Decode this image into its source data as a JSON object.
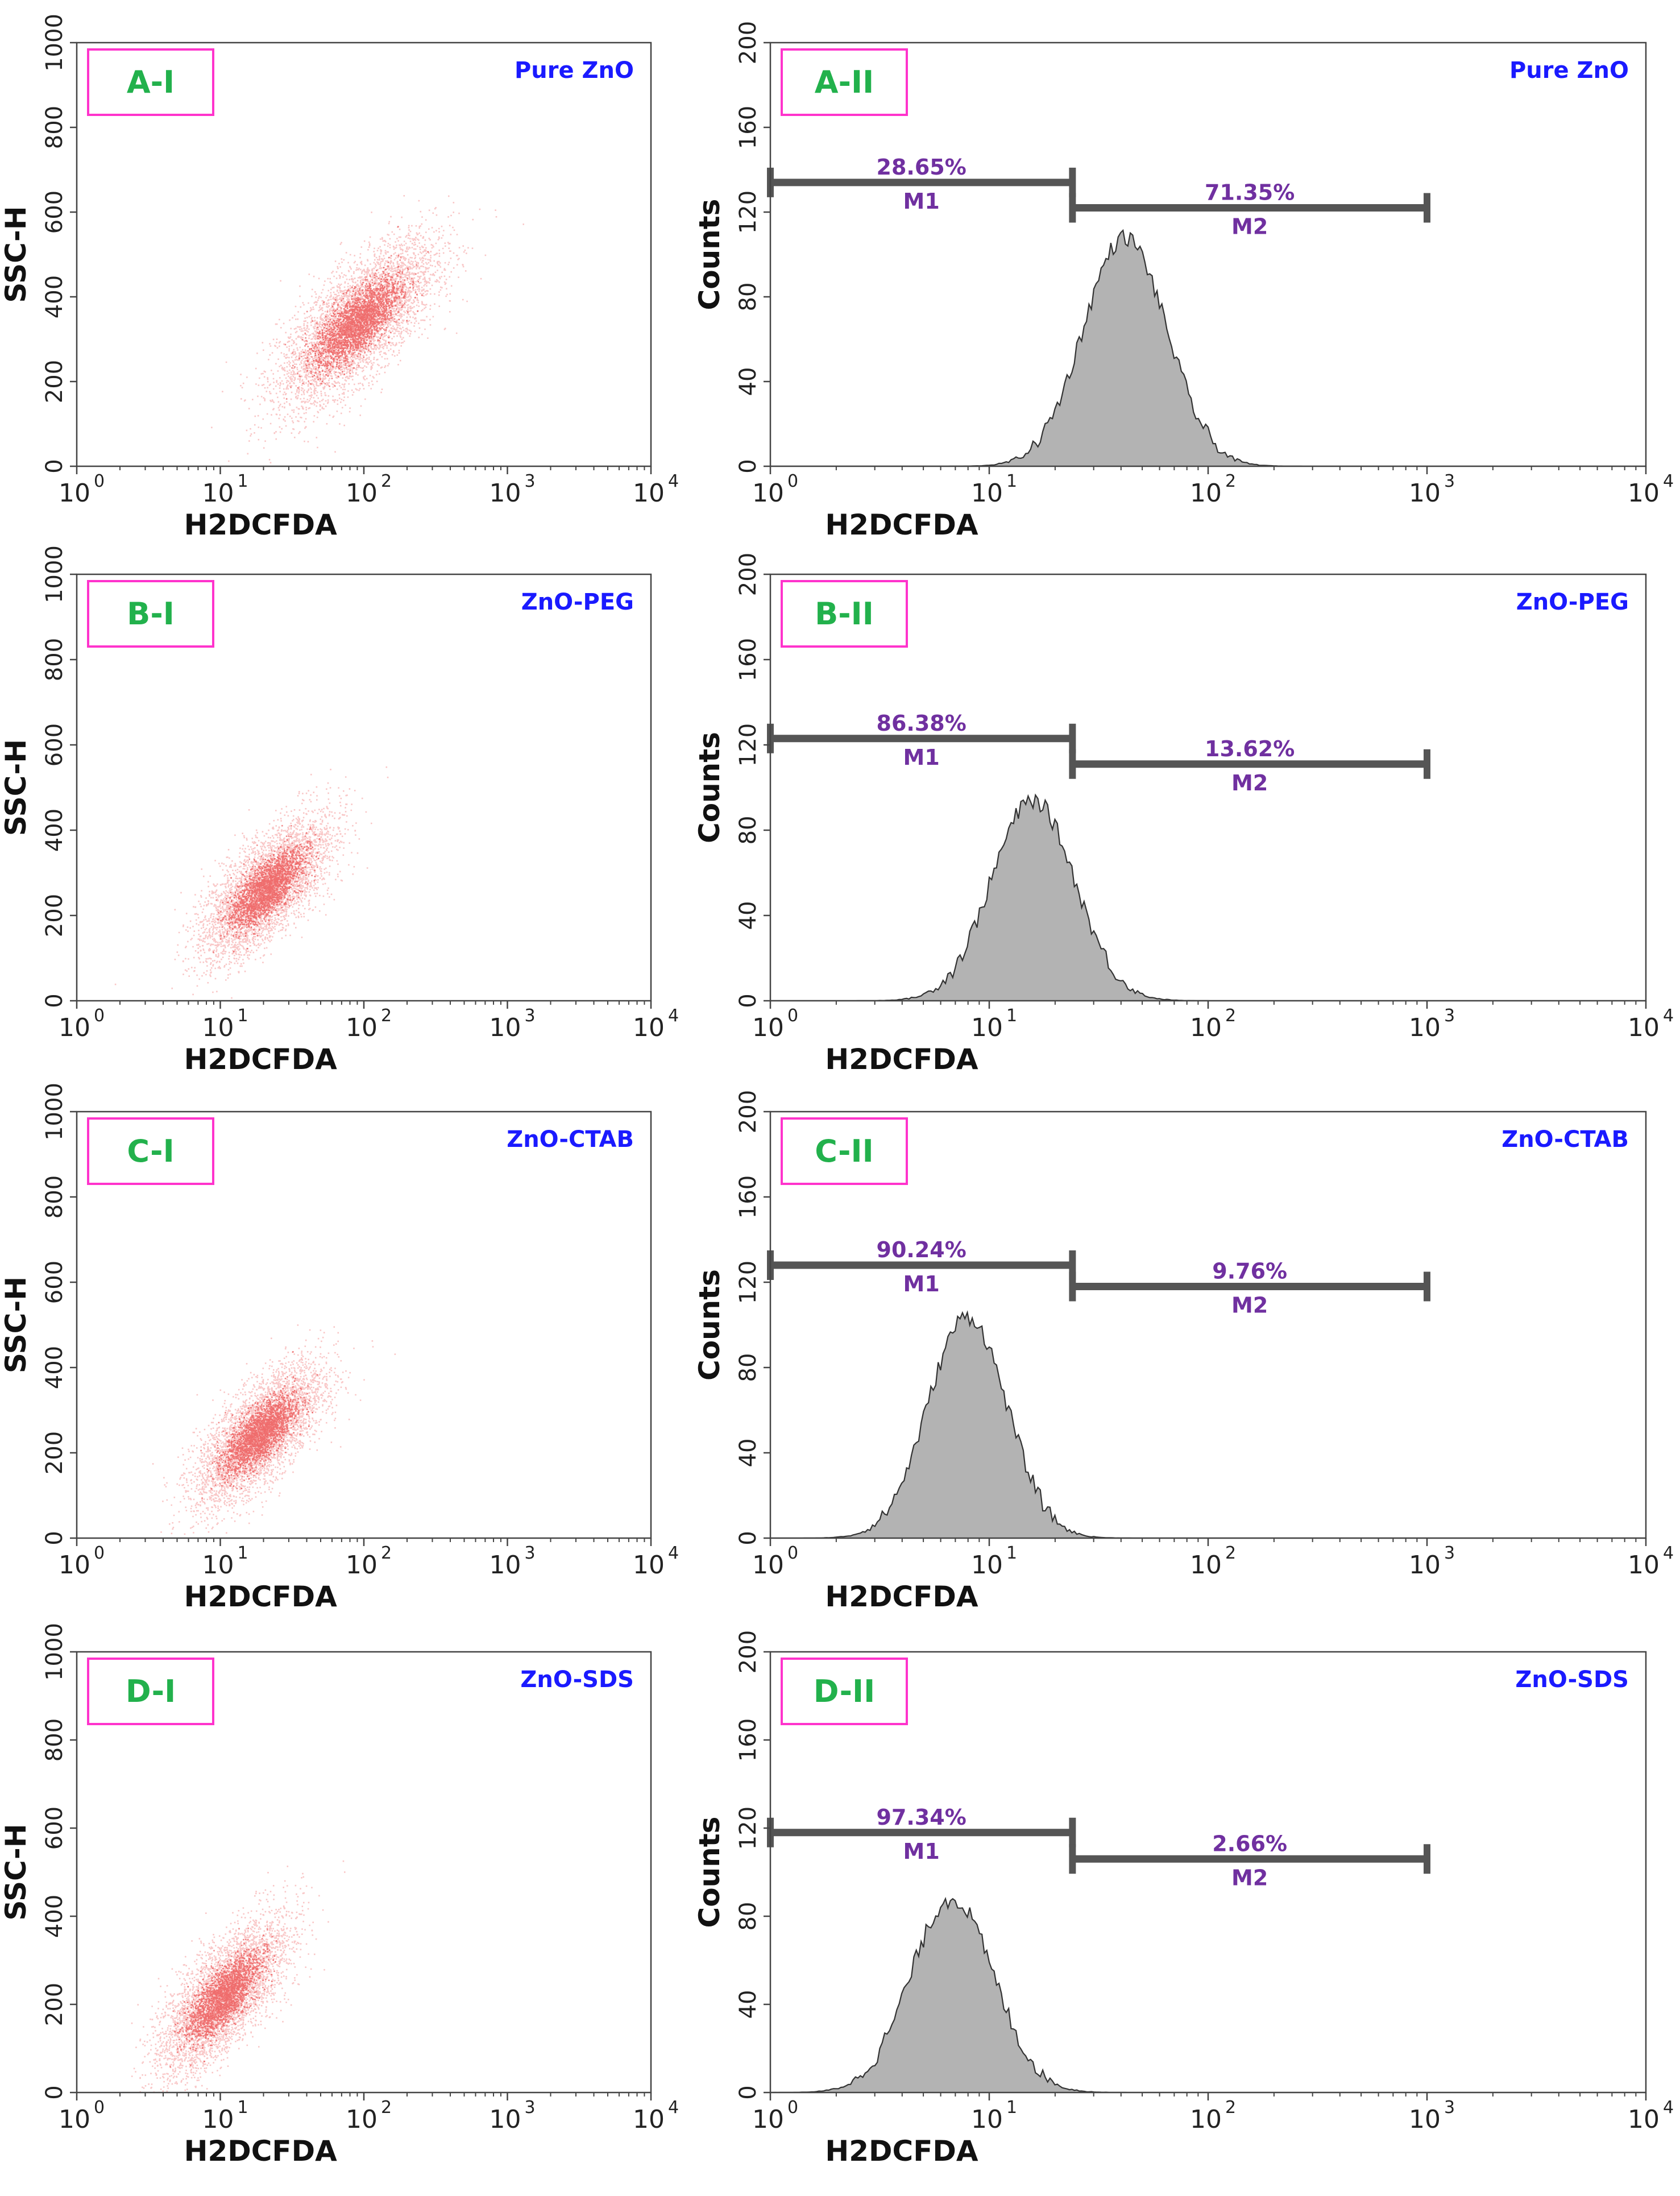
{
  "figure": {
    "sample_labels": [
      "Pure ZnO",
      "ZnO-PEG",
      "ZnO-CTAB",
      "ZnO-SDS"
    ],
    "colors": {
      "panel_label_text": "#22b14c",
      "panel_label_border": "#ff33cc",
      "sample_label": "#1a1aff",
      "marker_text": "#7030a0",
      "marker_bar": "#555555",
      "scatter_dot": "#e30000",
      "histogram_fill": "#b3b3b3",
      "histogram_edge": "#333333",
      "axis": "#444444"
    }
  },
  "chart_data": [
    {
      "id": "A-I",
      "type": "scatter",
      "panel_label": "A-I",
      "sample": "Pure ZnO",
      "xlabel": "H2DCFDA",
      "ylabel": "SSC-H",
      "xscale": "log",
      "xlim": [
        1,
        10000
      ],
      "xticks": [
        "10",
        "10",
        "10",
        "10",
        "10"
      ],
      "xtick_exponents": [
        "0",
        "1",
        "2",
        "3",
        "4"
      ],
      "ylim": [
        0,
        1000
      ],
      "yticks": [
        "0",
        "200",
        "400",
        "600",
        "800",
        "1000"
      ],
      "population": {
        "center_log_x": 1.95,
        "center_y": 340,
        "spread_log_x": 0.27,
        "spread_y": 95,
        "correlation": 0.72,
        "n": 5000
      }
    },
    {
      "id": "A-II",
      "type": "area",
      "panel_label": "A-II",
      "sample": "Pure ZnO",
      "xlabel": "H2DCFDA",
      "ylabel": "Counts",
      "xscale": "log",
      "xlim": [
        1,
        10000
      ],
      "xticks": [
        "10",
        "10",
        "10",
        "10",
        "10"
      ],
      "xtick_exponents": [
        "0",
        "1",
        "2",
        "3",
        "4"
      ],
      "ylim": [
        0,
        200
      ],
      "yticks": [
        "0",
        "40",
        "80",
        "120",
        "160",
        "200"
      ],
      "histogram": {
        "peak_log_x": 1.62,
        "peak_count": 108,
        "spread_log_x": 0.19
      },
      "markers": [
        {
          "name": "M1",
          "percent": "28.65%",
          "from": 1,
          "to": 24,
          "y": 134
        },
        {
          "name": "M2",
          "percent": "71.35%",
          "from": 24,
          "to": 1000,
          "y": 122
        }
      ]
    },
    {
      "id": "B-I",
      "type": "scatter",
      "panel_label": "B-I",
      "sample": "ZnO-PEG",
      "xlabel": "H2DCFDA",
      "ylabel": "SSC-H",
      "xscale": "log",
      "xlim": [
        1,
        10000
      ],
      "xticks": [
        "10",
        "10",
        "10",
        "10",
        "10"
      ],
      "xtick_exponents": [
        "0",
        "1",
        "2",
        "3",
        "4"
      ],
      "ylim": [
        0,
        1000
      ],
      "yticks": [
        "0",
        "200",
        "400",
        "600",
        "800",
        "1000"
      ],
      "population": {
        "center_log_x": 1.32,
        "center_y": 265,
        "spread_log_x": 0.22,
        "spread_y": 80,
        "correlation": 0.7,
        "n": 4500
      }
    },
    {
      "id": "B-II",
      "type": "area",
      "panel_label": "B-II",
      "sample": "ZnO-PEG",
      "xlabel": "H2DCFDA",
      "ylabel": "Counts",
      "xscale": "log",
      "xlim": [
        1,
        10000
      ],
      "xticks": [
        "10",
        "10",
        "10",
        "10",
        "10"
      ],
      "xtick_exponents": [
        "0",
        "1",
        "2",
        "3",
        "4"
      ],
      "ylim": [
        0,
        200
      ],
      "yticks": [
        "0",
        "40",
        "80",
        "120",
        "160",
        "200"
      ],
      "histogram": {
        "peak_log_x": 1.2,
        "peak_count": 94,
        "spread_log_x": 0.19
      },
      "markers": [
        {
          "name": "M1",
          "percent": "86.38%",
          "from": 1,
          "to": 24,
          "y": 123
        },
        {
          "name": "M2",
          "percent": "13.62%",
          "from": 24,
          "to": 1000,
          "y": 111
        }
      ]
    },
    {
      "id": "C-I",
      "type": "scatter",
      "panel_label": "C-I",
      "sample": "ZnO-CTAB",
      "xlabel": "H2DCFDA",
      "ylabel": "SSC-H",
      "xscale": "log",
      "xlim": [
        1,
        10000
      ],
      "xticks": [
        "10",
        "10",
        "10",
        "10",
        "10"
      ],
      "xtick_exponents": [
        "0",
        "1",
        "2",
        "3",
        "4"
      ],
      "ylim": [
        0,
        1000
      ],
      "yticks": [
        "0",
        "200",
        "400",
        "600",
        "800",
        "1000"
      ],
      "population": {
        "center_log_x": 1.27,
        "center_y": 245,
        "spread_log_x": 0.22,
        "spread_y": 80,
        "correlation": 0.7,
        "n": 4500
      }
    },
    {
      "id": "C-II",
      "type": "area",
      "panel_label": "C-II",
      "sample": "ZnO-CTAB",
      "xlabel": "H2DCFDA",
      "ylabel": "Counts",
      "xscale": "log",
      "xlim": [
        1,
        10000
      ],
      "xticks": [
        "10",
        "10",
        "10",
        "10",
        "10"
      ],
      "xtick_exponents": [
        "0",
        "1",
        "2",
        "3",
        "4"
      ],
      "ylim": [
        0,
        200
      ],
      "yticks": [
        "0",
        "40",
        "80",
        "120",
        "160",
        "200"
      ],
      "histogram": {
        "peak_log_x": 0.9,
        "peak_count": 104,
        "spread_log_x": 0.18
      },
      "markers": [
        {
          "name": "M1",
          "percent": "90.24%",
          "from": 1,
          "to": 24,
          "y": 128
        },
        {
          "name": "M2",
          "percent": "9.76%",
          "from": 24,
          "to": 1000,
          "y": 118
        }
      ]
    },
    {
      "id": "D-I",
      "type": "scatter",
      "panel_label": "D-I",
      "sample": "ZnO-SDS",
      "xlabel": "H2DCFDA",
      "ylabel": "SSC-H",
      "xscale": "log",
      "xlim": [
        1,
        10000
      ],
      "xticks": [
        "10",
        "10",
        "10",
        "10",
        "10"
      ],
      "xtick_exponents": [
        "0",
        "1",
        "2",
        "3",
        "4"
      ],
      "ylim": [
        0,
        1000
      ],
      "yticks": [
        "0",
        "200",
        "400",
        "600",
        "800",
        "1000"
      ],
      "population": {
        "center_log_x": 1.02,
        "center_y": 220,
        "spread_log_x": 0.22,
        "spread_y": 85,
        "correlation": 0.72,
        "n": 4500
      }
    },
    {
      "id": "D-II",
      "type": "area",
      "panel_label": "D-II",
      "sample": "ZnO-SDS",
      "xlabel": "H2DCFDA",
      "ylabel": "Counts",
      "xscale": "log",
      "xlim": [
        1,
        10000
      ],
      "xticks": [
        "10",
        "10",
        "10",
        "10",
        "10"
      ],
      "xtick_exponents": [
        "0",
        "1",
        "2",
        "3",
        "4"
      ],
      "ylim": [
        0,
        200
      ],
      "yticks": [
        "0",
        "40",
        "80",
        "120",
        "160",
        "200"
      ],
      "histogram": {
        "peak_log_x": 0.83,
        "peak_count": 88,
        "spread_log_x": 0.19
      },
      "markers": [
        {
          "name": "M1",
          "percent": "97.34%",
          "from": 1,
          "to": 24,
          "y": 118
        },
        {
          "name": "M2",
          "percent": "2.66%",
          "from": 24,
          "to": 1000,
          "y": 106
        }
      ]
    }
  ]
}
